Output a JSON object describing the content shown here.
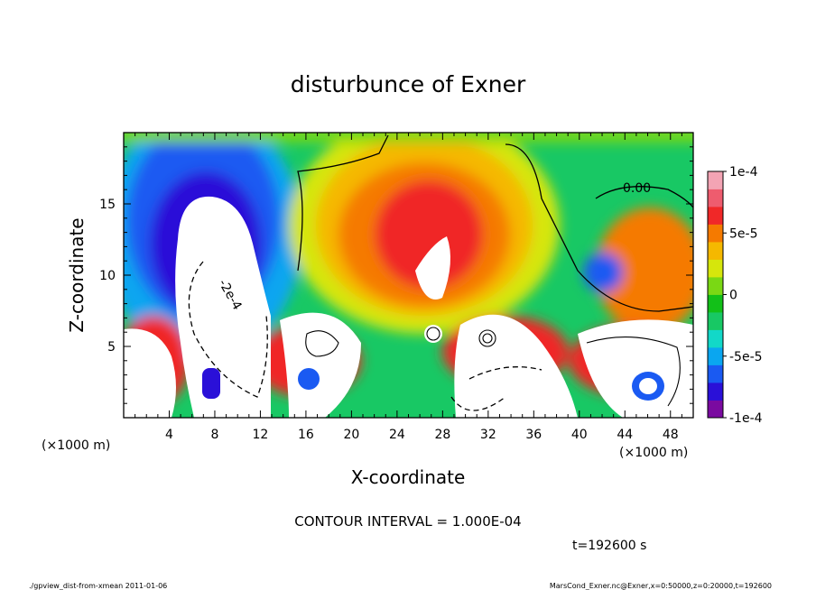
{
  "chart_data": {
    "type": "heatmap",
    "title": "disturbunce of Exner",
    "xlabel": "X-coordinate",
    "ylabel": "Z-coordinate",
    "x_unit": "(×1000 m)",
    "y_unit": "(×1000 m)",
    "xlim": [
      0,
      50
    ],
    "ylim": [
      0,
      20
    ],
    "x_ticks": [
      "4",
      "8",
      "12",
      "16",
      "20",
      "24",
      "28",
      "32",
      "36",
      "40",
      "44",
      "48"
    ],
    "y_ticks": [
      "5",
      "10",
      "15"
    ],
    "colorbar": {
      "range": [
        -0.0001,
        0.0001
      ],
      "tick_labels": [
        "1e-4",
        "5e-5",
        "0",
        "-5e-5",
        "-1e-4"
      ],
      "colors": [
        "#7a0aa0",
        "#2a10d8",
        "#1a5af2",
        "#0aa6f0",
        "#12d8c8",
        "#18c864",
        "#12c018",
        "#7ad814",
        "#d6e60c",
        "#f5b800",
        "#f57a00",
        "#f02828",
        "#ee5c6e",
        "#f3a4b4"
      ]
    },
    "contour_labels": [
      "0.00",
      "-2e-4"
    ],
    "contour_interval": "CONTOUR INTERVAL = 1.000E-04",
    "time": "t=192600 s"
  },
  "footer": {
    "left": "./gpview_dist-from-xmean  2011-01-06",
    "right": "MarsCond_Exner.nc@Exner,x=0:50000,z=0:20000,t=192600"
  }
}
